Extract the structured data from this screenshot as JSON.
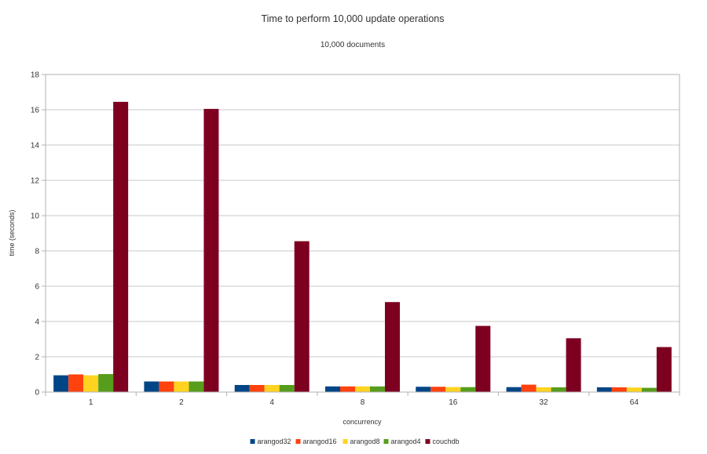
{
  "chart_data": {
    "type": "bar",
    "title": "Time to perform 10,000 update operations",
    "subtitle": "10,000 documents",
    "xlabel": "concurrency",
    "ylabel": "time (seconds)",
    "categories": [
      "1",
      "2",
      "4",
      "8",
      "16",
      "32",
      "64"
    ],
    "ylim": [
      0,
      18
    ],
    "yticks": [
      0,
      2,
      4,
      6,
      8,
      10,
      12,
      14,
      16,
      18
    ],
    "grid": true,
    "legend_position": "bottom",
    "series": [
      {
        "name": "arangod32",
        "color": "#004586",
        "values": [
          0.95,
          0.6,
          0.4,
          0.32,
          0.3,
          0.28,
          0.27
        ]
      },
      {
        "name": "arangod16",
        "color": "#ff420e",
        "values": [
          1.0,
          0.6,
          0.4,
          0.32,
          0.3,
          0.42,
          0.27
        ]
      },
      {
        "name": "arangod8",
        "color": "#ffd320",
        "values": [
          0.95,
          0.6,
          0.4,
          0.32,
          0.28,
          0.27,
          0.26
        ]
      },
      {
        "name": "arangod4",
        "color": "#579d1c",
        "values": [
          1.02,
          0.6,
          0.4,
          0.32,
          0.28,
          0.27,
          0.24
        ]
      },
      {
        "name": "couchdb",
        "color": "#7e0021",
        "values": [
          16.45,
          16.05,
          8.55,
          5.1,
          3.75,
          3.05,
          2.55
        ]
      }
    ]
  }
}
